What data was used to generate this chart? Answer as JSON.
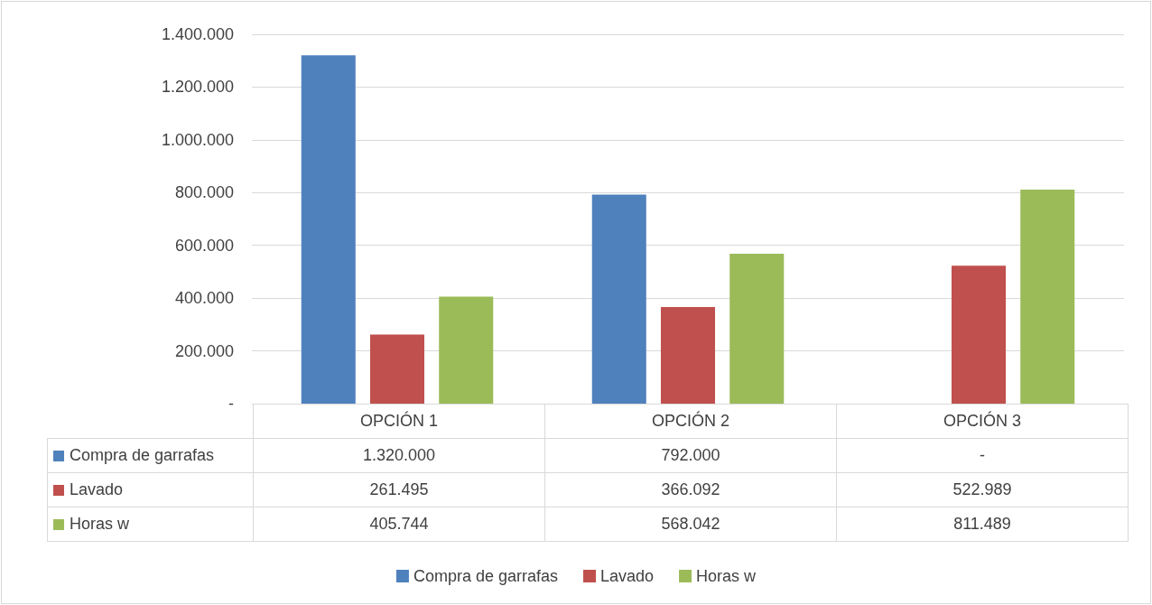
{
  "chart_data": {
    "type": "bar",
    "categories": [
      "OPCIÓN 1",
      "OPCIÓN 2",
      "OPCIÓN 3"
    ],
    "series": [
      {
        "name": "Compra de garrafas",
        "color": "#4f81bd",
        "values": [
          1320000,
          792000,
          null
        ],
        "value_labels": [
          "1.320.000",
          "792.000",
          "-"
        ]
      },
      {
        "name": "Lavado",
        "color": "#c0504d",
        "values": [
          261495,
          366092,
          522989
        ],
        "value_labels": [
          "261.495",
          "366.092",
          "522.989"
        ]
      },
      {
        "name": "Horas w",
        "color": "#9bbb59",
        "values": [
          405744,
          568042,
          811489
        ],
        "value_labels": [
          "405.744",
          "568.042",
          "811.489"
        ]
      }
    ],
    "ylim": [
      0,
      1400000
    ],
    "yticks": [
      {
        "value": 0,
        "label": "-"
      },
      {
        "value": 200000,
        "label": "200.000"
      },
      {
        "value": 400000,
        "label": "400.000"
      },
      {
        "value": 600000,
        "label": "600.000"
      },
      {
        "value": 800000,
        "label": "800.000"
      },
      {
        "value": 1000000,
        "label": "1.000.000"
      },
      {
        "value": 1200000,
        "label": "1.200.000"
      },
      {
        "value": 1400000,
        "label": "1.400.000"
      }
    ],
    "grid": "y",
    "legend": "bottom"
  }
}
